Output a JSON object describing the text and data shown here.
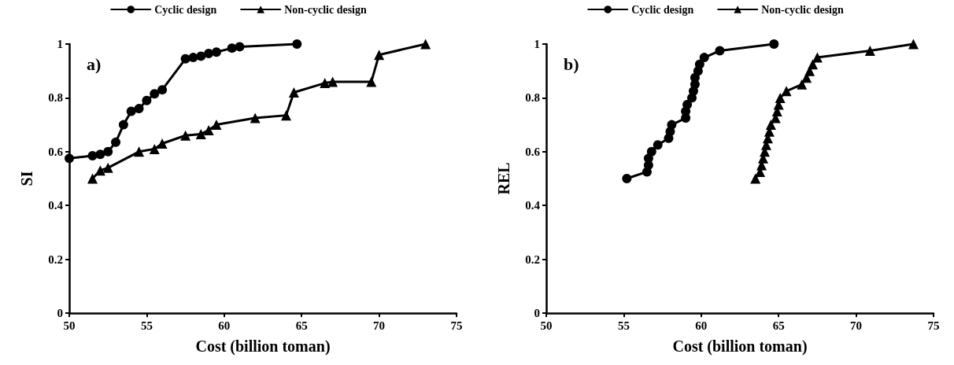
{
  "chart_data": [
    {
      "type": "line",
      "xlabel": "Cost (billion toman)",
      "ylabel": "SI",
      "annotations": [
        "a)"
      ],
      "xlim": [
        50,
        75
      ],
      "xticks": [
        50,
        55,
        60,
        65,
        70,
        75
      ],
      "ylim": [
        0,
        1
      ],
      "yticks": [
        0,
        0.2,
        0.4,
        0.6,
        0.8,
        1
      ],
      "grid": false,
      "legend": "top",
      "line_style": "solid",
      "series": [
        {
          "name": "Cyclic design",
          "color": "#000000",
          "marker": "circle",
          "x": [
            50,
            51.5,
            52,
            52.5,
            53,
            53.5,
            54,
            54.5,
            55,
            55.5,
            56,
            57.5,
            58,
            58.5,
            59,
            59.5,
            60.5,
            61,
            64.7
          ],
          "values": [
            0.575,
            0.585,
            0.59,
            0.6,
            0.635,
            0.7,
            0.75,
            0.76,
            0.79,
            0.815,
            0.83,
            0.945,
            0.95,
            0.955,
            0.965,
            0.97,
            0.985,
            0.99,
            1
          ]
        },
        {
          "name": "Non-cyclic design",
          "color": "#000000",
          "marker": "triangle",
          "x": [
            51.5,
            52,
            52.5,
            54.5,
            55.5,
            56,
            57.5,
            58.5,
            59,
            59.5,
            62,
            64,
            64.5,
            66.5,
            67,
            69.5,
            70,
            73
          ],
          "values": [
            0.5,
            0.53,
            0.54,
            0.6,
            0.61,
            0.63,
            0.66,
            0.665,
            0.68,
            0.7,
            0.725,
            0.735,
            0.82,
            0.855,
            0.86,
            0.86,
            0.96,
            1
          ]
        }
      ]
    },
    {
      "type": "line",
      "xlabel": "Cost (billion toman)",
      "ylabel": "REL",
      "annotations": [
        "b)"
      ],
      "xlim": [
        50,
        75
      ],
      "xticks": [
        50,
        55,
        60,
        65,
        70,
        75
      ],
      "ylim": [
        0,
        1
      ],
      "yticks": [
        0,
        0.2,
        0.4,
        0.6,
        0.8,
        1
      ],
      "grid": false,
      "legend": "top",
      "line_style": "solid",
      "series": [
        {
          "name": "Cyclic design",
          "color": "#000000",
          "marker": "circle",
          "x": [
            55.2,
            56.5,
            56.6,
            56.6,
            56.8,
            57.2,
            57.9,
            58,
            58.1,
            59,
            59,
            59.1,
            59.4,
            59.5,
            59.6,
            59.6,
            59.8,
            59.9,
            60.2,
            61.2,
            64.7
          ],
          "values": [
            0.5,
            0.525,
            0.55,
            0.575,
            0.6,
            0.625,
            0.65,
            0.675,
            0.7,
            0.725,
            0.75,
            0.775,
            0.8,
            0.825,
            0.85,
            0.875,
            0.9,
            0.925,
            0.95,
            0.975,
            1
          ]
        },
        {
          "name": "Non-cyclic design",
          "color": "#000000",
          "marker": "triangle",
          "x": [
            63.5,
            63.8,
            63.9,
            64,
            64.1,
            64.2,
            64.3,
            64.4,
            64.5,
            64.8,
            64.9,
            65,
            65.1,
            65.5,
            66.5,
            66.8,
            67,
            67.2,
            67.5,
            70.9,
            73.7
          ],
          "values": [
            0.5,
            0.525,
            0.55,
            0.575,
            0.6,
            0.625,
            0.65,
            0.675,
            0.7,
            0.725,
            0.75,
            0.775,
            0.8,
            0.825,
            0.85,
            0.875,
            0.9,
            0.925,
            0.95,
            0.975,
            1
          ]
        }
      ]
    }
  ]
}
